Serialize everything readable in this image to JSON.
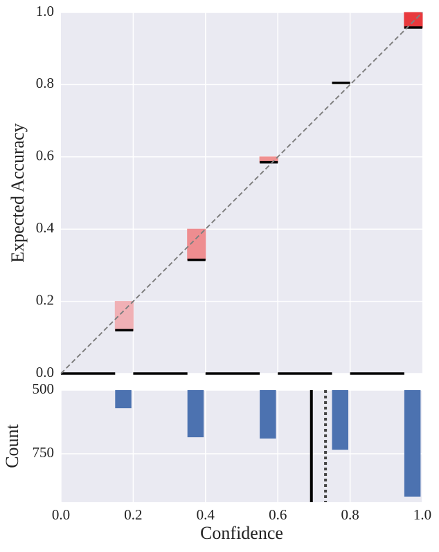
{
  "chart_data": [
    {
      "type": "reliability",
      "ylabel": "Expected Accuracy",
      "xlim": [
        0,
        1
      ],
      "ylim": [
        0,
        1
      ],
      "xticks": [
        0.2,
        0.4,
        0.6,
        0.8
      ],
      "yticks": [
        {
          "value": 0,
          "label": "0.0"
        },
        {
          "value": 0.2,
          "label": "0.2"
        },
        {
          "value": 0.4,
          "label": "0.4"
        },
        {
          "value": 0.6,
          "label": "0.6"
        },
        {
          "value": 0.8,
          "label": "0.8"
        },
        {
          "value": 1,
          "label": "1.0"
        }
      ],
      "bin_edges": [
        0,
        0.15,
        0.2,
        0.35,
        0.4,
        0.55,
        0.6,
        0.75,
        0.8,
        0.95,
        1.0
      ],
      "accuracy": [
        0,
        0.12,
        0,
        0.315,
        0,
        0.585,
        0,
        0.805,
        0,
        0.958
      ],
      "confidence": [
        null,
        0.2,
        null,
        0.4,
        null,
        0.6,
        null,
        0.8,
        null,
        1.0
      ],
      "gap_colors": [
        "#f0b0b5",
        "#f0b0b5",
        "#ee8d90",
        "#ee8d90",
        "#f09090",
        "#f09090",
        "#ec7478",
        "#ec7478",
        "#e8393d",
        "#e8393d"
      ],
      "accuracy_color": "#000000",
      "diagonal_color": "#808080",
      "grid": true
    },
    {
      "type": "histogram",
      "xlabel": "Confidence",
      "ylabel": "Count",
      "xlim": [
        0,
        1
      ],
      "ylim": [
        500,
        940
      ],
      "xticks": [
        {
          "value": 0,
          "label": "0.0"
        },
        {
          "value": 0.2,
          "label": "0.2"
        },
        {
          "value": 0.4,
          "label": "0.4"
        },
        {
          "value": 0.6,
          "label": "0.6"
        },
        {
          "value": 0.8,
          "label": "0.8"
        },
        {
          "value": 1,
          "label": "1.0"
        }
      ],
      "yticks": [
        500,
        750
      ],
      "x": [
        0.15,
        0.35,
        0.55,
        0.75,
        0.95
      ],
      "values": [
        571,
        685,
        690,
        734,
        918
      ],
      "color": "#4c72b0",
      "accuracy_line": 0.693,
      "confidence_line": 0.732,
      "grid": true
    }
  ]
}
